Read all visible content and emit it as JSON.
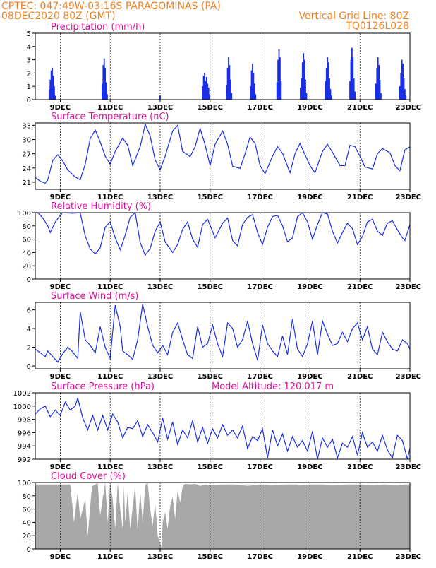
{
  "header": {
    "left1": "CPTEC:   047:49W-03:16S   PARAGOMINAS (PA)",
    "left2": "08DEC2020 80Z (GMT)",
    "right1": "Vertical Grid Line: 80Z",
    "right2": "TQ0126L028"
  },
  "colors": {
    "header": "#f08020",
    "title": "#e0109a",
    "series": "#1a2ee6",
    "cloud": "#a8a8a8"
  },
  "x_tick_labels": [
    "9DEC",
    "11DEC",
    "13DEC",
    "15DEC",
    "17DEC",
    "19DEC",
    "21DEC",
    "23DEC"
  ],
  "chart_data": [
    {
      "id": "precip",
      "type": "bar",
      "title": "Precipitation  (mm/h)",
      "ylim": [
        0,
        5
      ],
      "yticks": [
        0,
        1,
        2,
        3,
        4,
        5
      ],
      "xlim": [
        0,
        15
      ],
      "grid": true,
      "x": [
        0.56,
        0.6,
        0.64,
        0.68,
        0.72,
        0.76,
        0.8,
        2.68,
        2.72,
        2.76,
        2.8,
        2.84,
        2.88,
        5.0,
        6.7,
        6.74,
        6.78,
        6.82,
        6.86,
        6.9,
        6.94,
        6.98,
        7.66,
        7.7,
        7.74,
        7.78,
        7.82,
        7.86,
        8.62,
        8.66,
        8.7,
        8.74,
        8.78,
        8.82,
        9.68,
        9.72,
        9.76,
        9.8,
        9.84,
        10.62,
        10.66,
        10.7,
        10.74,
        10.78,
        10.82,
        10.86,
        11.62,
        11.66,
        11.7,
        11.74,
        11.78,
        11.82,
        11.86,
        12.6,
        12.64,
        12.68,
        12.72,
        12.76,
        12.8,
        13.64,
        13.68,
        13.72,
        13.76,
        13.8,
        13.84,
        14.6,
        14.64,
        14.68,
        14.72,
        14.76,
        14.8,
        14.84
      ],
      "values": [
        0.8,
        1.5,
        2.2,
        2.4,
        1.8,
        1.0,
        0.3,
        1.2,
        2.6,
        3.1,
        2.4,
        1.3,
        0.4,
        0.3,
        1.0,
        1.8,
        2.0,
        1.4,
        1.7,
        1.2,
        0.9,
        0.4,
        1.1,
        2.4,
        3.2,
        2.6,
        1.5,
        0.5,
        1.0,
        2.2,
        2.7,
        2.0,
        1.2,
        0.4,
        1.3,
        3.0,
        3.8,
        3.2,
        1.4,
        0.9,
        1.6,
        2.8,
        3.5,
        3.0,
        1.5,
        0.5,
        1.4,
        2.4,
        3.2,
        2.8,
        1.6,
        0.8,
        0.3,
        1.4,
        3.0,
        3.9,
        3.2,
        1.6,
        0.6,
        1.2,
        2.4,
        3.2,
        2.6,
        1.5,
        0.5,
        1.0,
        2.0,
        3.0,
        2.7,
        1.6,
        0.8,
        0.3
      ]
    },
    {
      "id": "temp",
      "type": "line",
      "title": "Surface Temperature (nC)",
      "ylim": [
        19.5,
        33.5
      ],
      "yticks": [
        21,
        24,
        27,
        30,
        33
      ],
      "xlim": [
        0,
        15
      ],
      "grid": true,
      "x": [
        0,
        0.2,
        0.4,
        0.5,
        0.7,
        0.9,
        1.1,
        1.3,
        1.6,
        1.8,
        2.0,
        2.2,
        2.4,
        2.6,
        2.8,
        3.0,
        3.2,
        3.5,
        3.7,
        3.9,
        4.2,
        4.4,
        4.6,
        4.8,
        5.0,
        5.2,
        5.5,
        5.7,
        5.9,
        6.2,
        6.4,
        6.6,
        6.8,
        7.0,
        7.2,
        7.5,
        7.7,
        7.9,
        8.2,
        8.4,
        8.6,
        8.8,
        9.0,
        9.2,
        9.5,
        9.7,
        9.9,
        10.2,
        10.4,
        10.6,
        10.8,
        11.0,
        11.2,
        11.5,
        11.7,
        11.9,
        12.2,
        12.4,
        12.6,
        12.8,
        13.0,
        13.2,
        13.5,
        13.7,
        13.9,
        14.2,
        14.4,
        14.6,
        14.8,
        15.0
      ],
      "y": [
        22,
        21.2,
        20.8,
        21.5,
        25.6,
        26.8,
        25.5,
        23.6,
        22.1,
        21.5,
        24.8,
        30.2,
        32.0,
        29.5,
        26.5,
        24.8,
        27.5,
        30.3,
        28.8,
        24.5,
        28.5,
        33.2,
        30.8,
        25.7,
        23.6,
        26.5,
        31.8,
        33.0,
        27.5,
        26.4,
        28.5,
        32.4,
        28.9,
        24.5,
        29.0,
        31.8,
        29.0,
        24.4,
        23.9,
        27.0,
        30.5,
        29.2,
        24.5,
        22.8,
        26.5,
        28.5,
        27.1,
        23.0,
        27.0,
        29.2,
        26.8,
        24.5,
        23.0,
        27.5,
        29.0,
        27.3,
        24.5,
        24.5,
        28.8,
        28.5,
        26.5,
        24.2,
        23.8,
        27.0,
        28.1,
        27.2,
        24.5,
        23.4,
        27.8,
        28.5
      ]
    },
    {
      "id": "rh",
      "type": "line",
      "title": "Relative Humidity  (%)",
      "ylim": [
        0,
        100
      ],
      "yticks": [
        0,
        20,
        40,
        60,
        80,
        100
      ],
      "xlim": [
        0,
        15
      ],
      "grid": true,
      "x": [
        0,
        0.1,
        0.3,
        0.5,
        0.6,
        0.8,
        1.0,
        1.1,
        1.5,
        1.8,
        2.0,
        2.2,
        2.4,
        2.6,
        2.8,
        3.0,
        3.2,
        3.4,
        3.6,
        3.8,
        4.0,
        4.2,
        4.4,
        4.6,
        4.8,
        5.0,
        5.2,
        5.5,
        5.7,
        5.9,
        6.1,
        6.3,
        6.5,
        6.7,
        6.9,
        7.2,
        7.5,
        7.7,
        7.9,
        8.1,
        8.3,
        8.5,
        8.7,
        8.9,
        9.1,
        9.3,
        9.5,
        9.7,
        9.9,
        10.1,
        10.3,
        10.5,
        10.7,
        10.9,
        11.1,
        11.3,
        11.5,
        11.7,
        11.9,
        12.1,
        12.3,
        12.5,
        12.7,
        12.9,
        13.1,
        13.3,
        13.5,
        13.7,
        13.9,
        14.1,
        14.3,
        14.5,
        14.7,
        14.8,
        15.0
      ],
      "y": [
        100,
        100,
        92,
        80,
        70,
        86,
        96,
        100,
        99,
        100,
        65,
        45,
        38,
        47,
        78,
        86,
        62,
        44,
        66,
        93,
        100,
        55,
        36,
        46,
        72,
        86,
        56,
        40,
        52,
        75,
        86,
        60,
        48,
        82,
        90,
        62,
        84,
        92,
        58,
        50,
        82,
        93,
        97,
        70,
        52,
        78,
        94,
        96,
        80,
        56,
        62,
        94,
        100,
        86,
        60,
        82,
        100,
        98,
        72,
        54,
        70,
        84,
        76,
        52,
        64,
        86,
        90,
        72,
        66,
        84,
        88,
        74,
        62,
        58,
        82
      ]
    },
    {
      "id": "wind",
      "type": "line",
      "title": "Surface Wind  (m/s)",
      "ylim": [
        -0.3,
        6.8
      ],
      "yticks": [
        0,
        2,
        4,
        6
      ],
      "xlim": [
        0,
        15
      ],
      "grid": true,
      "x": [
        0,
        0.2,
        0.4,
        0.5,
        0.7,
        0.9,
        1.1,
        1.3,
        1.5,
        1.7,
        1.8,
        2.0,
        2.2,
        2.4,
        2.6,
        2.8,
        3.0,
        3.2,
        3.4,
        3.5,
        3.7,
        3.9,
        4.1,
        4.3,
        4.5,
        4.7,
        4.9,
        5.1,
        5.3,
        5.5,
        5.7,
        5.9,
        6.1,
        6.3,
        6.5,
        6.7,
        6.9,
        7.1,
        7.3,
        7.5,
        7.7,
        7.9,
        8.1,
        8.3,
        8.5,
        8.7,
        8.9,
        9.1,
        9.3,
        9.5,
        9.7,
        9.9,
        10.1,
        10.3,
        10.5,
        10.7,
        10.9,
        11.1,
        11.3,
        11.5,
        11.7,
        11.9,
        12.1,
        12.3,
        12.5,
        12.7,
        12.9,
        13.1,
        13.3,
        13.5,
        13.7,
        13.9,
        14.1,
        14.3,
        14.5,
        14.7,
        14.9,
        15.0
      ],
      "y": [
        1.8,
        1.4,
        1.0,
        1.6,
        1.0,
        0.4,
        1.3,
        2.0,
        1.5,
        0.8,
        5.8,
        2.8,
        2.2,
        1.4,
        4.2,
        2.0,
        0.8,
        6.5,
        4.2,
        1.6,
        1.2,
        0.7,
        2.8,
        6.6,
        4.2,
        2.2,
        1.4,
        2.2,
        1.2,
        3.6,
        4.6,
        2.8,
        1.2,
        0.8,
        4.2,
        2.0,
        2.4,
        4.4,
        2.4,
        1.0,
        4.6,
        4.0,
        2.0,
        2.8,
        4.8,
        2.4,
        0.6,
        4.4,
        2.4,
        1.6,
        1.0,
        3.2,
        1.2,
        5.0,
        1.8,
        1.0,
        2.4,
        4.8,
        1.2,
        4.8,
        3.4,
        2.2,
        2.4,
        3.6,
        2.6,
        4.0,
        4.6,
        2.8,
        4.2,
        1.8,
        1.2,
        3.6,
        2.6,
        1.8,
        1.6,
        2.8,
        2.4,
        1.8
      ]
    },
    {
      "id": "pressure",
      "type": "line",
      "title": "Surface Pressure (hPa)",
      "annotation": "Model Altitude: 120.017  m",
      "ylim": [
        992,
        1002
      ],
      "yticks": [
        992,
        994,
        996,
        998,
        1000,
        1002
      ],
      "xlim": [
        0,
        15
      ],
      "grid": true,
      "x": [
        0,
        0.2,
        0.4,
        0.6,
        0.8,
        1.0,
        1.2,
        1.4,
        1.6,
        1.7,
        1.9,
        2.1,
        2.3,
        2.5,
        2.7,
        2.9,
        3.1,
        3.3,
        3.5,
        3.7,
        3.9,
        4.1,
        4.3,
        4.5,
        4.7,
        4.9,
        5.1,
        5.3,
        5.5,
        5.7,
        5.9,
        6.1,
        6.3,
        6.5,
        6.7,
        6.9,
        7.1,
        7.3,
        7.5,
        7.7,
        7.9,
        8.1,
        8.3,
        8.5,
        8.7,
        8.9,
        9.1,
        9.3,
        9.5,
        9.7,
        9.9,
        10.1,
        10.3,
        10.5,
        10.7,
        10.9,
        11.1,
        11.3,
        11.5,
        11.7,
        11.9,
        12.1,
        12.3,
        12.5,
        12.7,
        12.9,
        13.1,
        13.3,
        13.5,
        13.7,
        13.9,
        14.1,
        14.3,
        14.5,
        14.7,
        14.9,
        15.0
      ],
      "y": [
        998.8,
        999.6,
        1000,
        998.4,
        999.4,
        998.6,
        1000.6,
        999.4,
        1000,
        1001.2,
        998.2,
        996.4,
        998.6,
        996.4,
        998.6,
        996.4,
        998.8,
        997.6,
        995.2,
        996.8,
        996.6,
        997.8,
        995.4,
        997.2,
        996.0,
        994.6,
        998.2,
        995.0,
        997.6,
        994.2,
        996.4,
        995.2,
        997.8,
        994.6,
        996.8,
        994.4,
        996.6,
        995.2,
        997.2,
        995.6,
        996.4,
        995.2,
        997.0,
        993.6,
        995.4,
        994.8,
        996.6,
        992.2,
        996.4,
        994.0,
        995.8,
        993.2,
        995.4,
        993.8,
        994.8,
        993.2,
        996.2,
        992.0,
        995.2,
        993.8,
        995.0,
        992.2,
        994.4,
        993.8,
        995.4,
        992.6,
        996.0,
        993.8,
        994.6,
        993.2,
        995.6,
        993.4,
        992.2,
        995.6,
        994.8,
        992.0,
        993.6
      ]
    },
    {
      "id": "cloud",
      "type": "area",
      "title": "Cloud Cover  (%)",
      "ylim": [
        0,
        100
      ],
      "yticks": [
        0,
        20,
        40,
        60,
        80,
        100
      ],
      "xlim": [
        0,
        15
      ],
      "grid": true,
      "x": [
        0,
        0.5,
        1.0,
        1.4,
        1.5,
        1.55,
        1.7,
        1.8,
        2.0,
        2.1,
        2.25,
        2.3,
        2.5,
        2.6,
        2.8,
        2.9,
        3.0,
        3.1,
        3.2,
        3.3,
        3.4,
        3.5,
        3.55,
        3.6,
        3.7,
        3.8,
        4.0,
        4.1,
        4.2,
        4.3,
        4.4,
        4.5,
        4.6,
        4.7,
        4.8,
        4.9,
        5.0,
        5.05,
        5.1,
        5.2,
        5.3,
        5.4,
        5.5,
        5.6,
        5.7,
        5.8,
        5.9,
        6.0,
        6.2,
        6.4,
        6.6,
        6.8,
        7.0,
        7.5,
        8.0,
        8.5,
        9.0,
        9.5,
        10.0,
        10.5,
        10.6,
        11.0,
        11.5,
        12.0,
        12.5,
        13.0,
        13.5,
        14.0,
        14.5,
        14.8,
        15.0
      ],
      "y": [
        97,
        97,
        97,
        97,
        60,
        40,
        86,
        45,
        75,
        20,
        85,
        95,
        99,
        50,
        100,
        40,
        100,
        75,
        30,
        100,
        60,
        30,
        95,
        40,
        85,
        30,
        95,
        25,
        88,
        40,
        96,
        100,
        60,
        35,
        70,
        20,
        10,
        2,
        40,
        55,
        30,
        65,
        78,
        45,
        88,
        70,
        94,
        98,
        97,
        98,
        95,
        97,
        96,
        97,
        97,
        95,
        97,
        96,
        97,
        97,
        96,
        97,
        97,
        96,
        97,
        97,
        96,
        97,
        96,
        97,
        97
      ]
    }
  ]
}
